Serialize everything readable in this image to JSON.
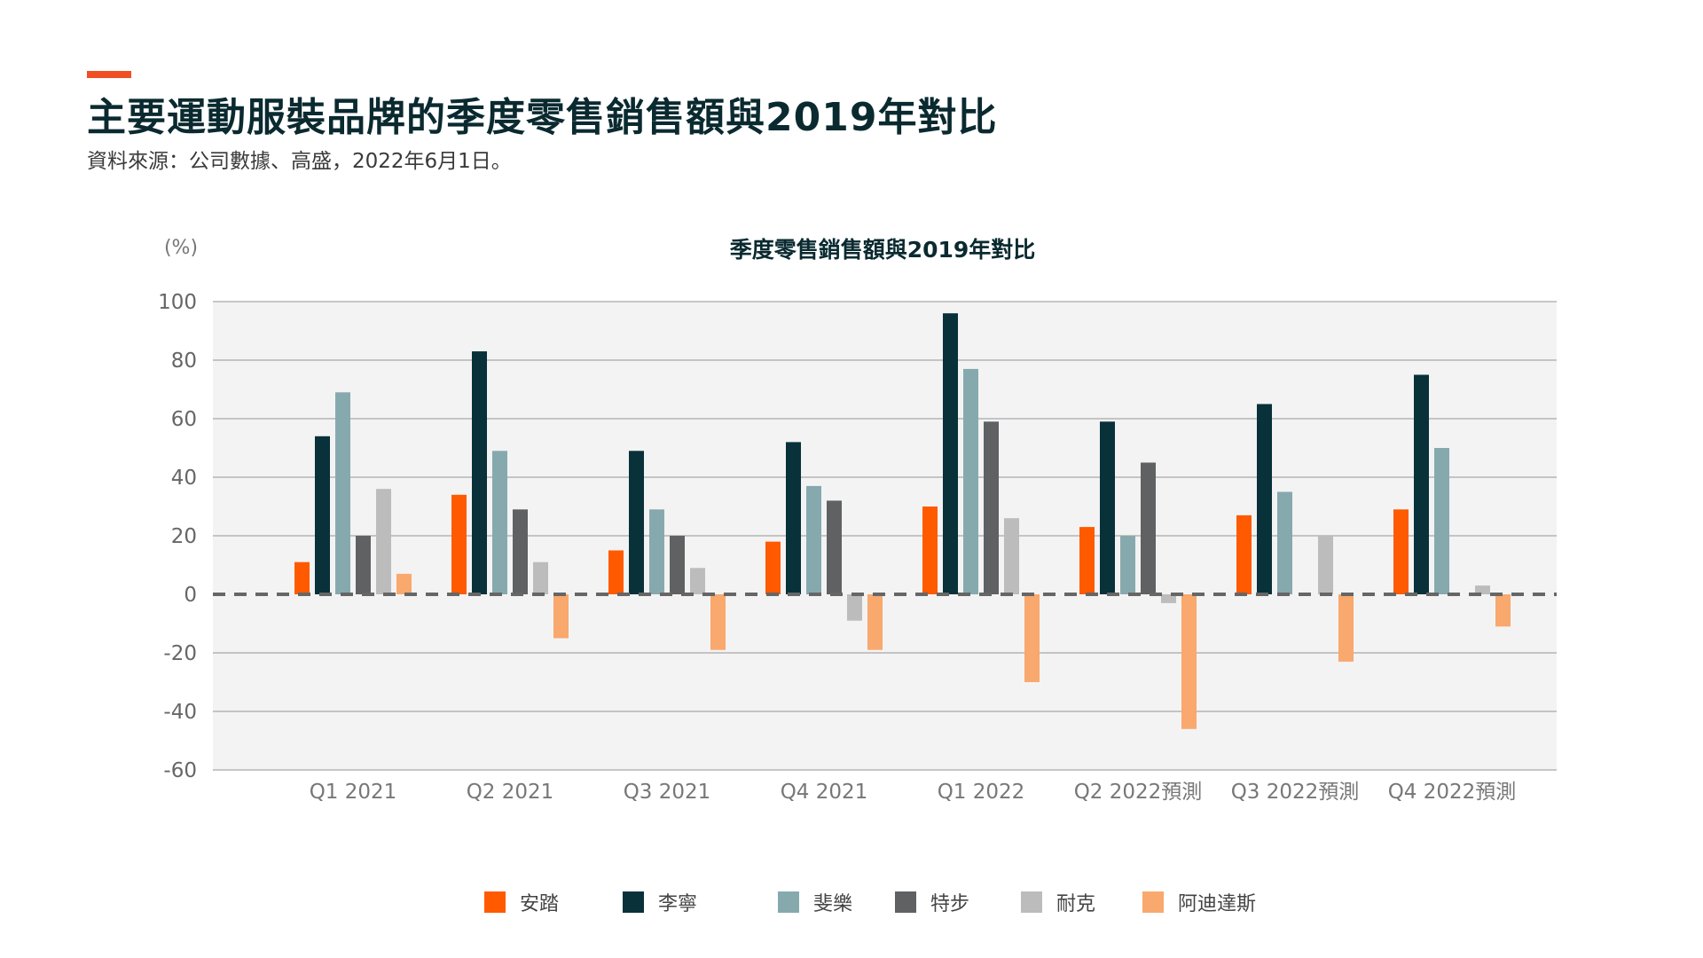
{
  "header": {
    "title": "主要運動服裝品牌的季度零售銷售額與2019年對比",
    "subtitle": "資料來源：公司數據、高盛，2022年6月1日。"
  },
  "chart_data": {
    "type": "bar",
    "title": "季度零售銷售額與2019年對比",
    "ylabel": "(%)",
    "xlabel": "",
    "ylim": [
      -60,
      100
    ],
    "yticks": [
      100,
      80,
      60,
      40,
      20,
      0,
      -20,
      -40,
      -60
    ],
    "grid": true,
    "zero_line": "dashed",
    "legend_position": "bottom",
    "categories": [
      "Q1 2021",
      "Q2 2021",
      "Q3 2021",
      "Q4 2021",
      "Q1 2022",
      "Q2 2022預測",
      "Q3 2022預測",
      "Q4 2022預測"
    ],
    "series": [
      {
        "name": "安踏",
        "color": "#ff5a00",
        "values": [
          11,
          34,
          15,
          18,
          30,
          23,
          27,
          29
        ]
      },
      {
        "name": "李寧",
        "color": "#08313a",
        "values": [
          54,
          83,
          49,
          52,
          96,
          59,
          65,
          75
        ]
      },
      {
        "name": "斐樂",
        "color": "#86a9ae",
        "values": [
          69,
          49,
          29,
          37,
          77,
          20,
          35,
          50
        ]
      },
      {
        "name": "特步",
        "color": "#5f6163",
        "values": [
          20,
          29,
          20,
          32,
          59,
          45,
          null,
          null
        ]
      },
      {
        "name": "耐克",
        "color": "#bcbcbc",
        "values": [
          36,
          11,
          9,
          -9,
          26,
          -3,
          20,
          3
        ]
      },
      {
        "name": "阿迪達斯",
        "color": "#f9a86e",
        "values": [
          7,
          -15,
          -19,
          -19,
          -30,
          -46,
          -23,
          -11
        ]
      }
    ]
  }
}
